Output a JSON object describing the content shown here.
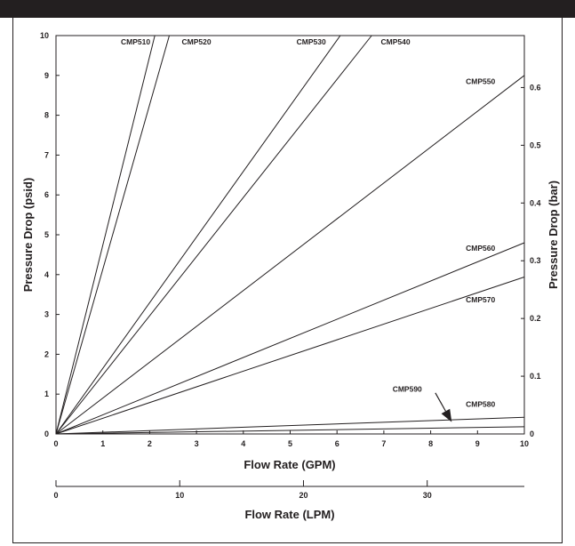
{
  "chart_data": {
    "type": "line",
    "xlabel": "Flow Rate (GPM)",
    "ylabel": "Pressure Drop (psid)",
    "y2label": "Pressure Drop (bar)",
    "x2label": "Flow Rate (LPM)",
    "xlim": [
      0,
      10
    ],
    "ylim": [
      0,
      10
    ],
    "y2lim": [
      0,
      0.69
    ],
    "x2lim": [
      0,
      37.85
    ],
    "x_ticks": [
      "0",
      "1",
      "2",
      "3",
      "4",
      "5",
      "6",
      "7",
      "8",
      "9",
      "10"
    ],
    "y_ticks": [
      "0",
      "1",
      "2",
      "3",
      "4",
      "5",
      "6",
      "7",
      "8",
      "9",
      "10"
    ],
    "y2_ticks": [
      {
        "value": 0,
        "label": "0"
      },
      {
        "value": 0.1,
        "label": "0.1"
      },
      {
        "value": 0.2,
        "label": "0.2"
      },
      {
        "value": 0.3,
        "label": "0.3"
      },
      {
        "value": 0.4,
        "label": "0.4"
      },
      {
        "value": 0.5,
        "label": "0.5"
      },
      {
        "value": 0.6,
        "label": "0.6"
      }
    ],
    "x2_ticks": [
      {
        "value": 0,
        "label": "0"
      },
      {
        "value": 10,
        "label": "10"
      },
      {
        "value": 20,
        "label": "20"
      },
      {
        "value": 30,
        "label": "30"
      }
    ],
    "series": [
      {
        "name": "CMP510",
        "x": [
          0,
          2.11
        ],
        "y": [
          0,
          10
        ]
      },
      {
        "name": "CMP520",
        "x": [
          0,
          2.42
        ],
        "y": [
          0,
          10
        ]
      },
      {
        "name": "CMP530",
        "x": [
          0,
          6.07
        ],
        "y": [
          0,
          10
        ]
      },
      {
        "name": "CMP540",
        "x": [
          0,
          6.74
        ],
        "y": [
          0,
          10
        ]
      },
      {
        "name": "CMP550",
        "x": [
          0,
          10
        ],
        "y": [
          0,
          9.0
        ]
      },
      {
        "name": "CMP560",
        "x": [
          0,
          10
        ],
        "y": [
          0,
          4.8
        ]
      },
      {
        "name": "CMP570",
        "x": [
          0,
          10
        ],
        "y": [
          0,
          3.94
        ]
      },
      {
        "name": "CMP580",
        "x": [
          0,
          10
        ],
        "y": [
          0,
          0.42
        ]
      },
      {
        "name": "CMP590",
        "x": [
          0,
          10
        ],
        "y": [
          0,
          0.18
        ]
      }
    ],
    "annotations": [
      {
        "text": "CMP510",
        "x": 1.7,
        "y": 9.78,
        "anchor": "middle"
      },
      {
        "text": "CMP520",
        "x": 3.0,
        "y": 9.78,
        "anchor": "middle"
      },
      {
        "text": "CMP530",
        "x": 5.45,
        "y": 9.78,
        "anchor": "middle"
      },
      {
        "text": "CMP540",
        "x": 7.25,
        "y": 9.78,
        "anchor": "middle"
      },
      {
        "text": "CMP550",
        "x": 8.75,
        "y": 8.78,
        "anchor": "start"
      },
      {
        "text": "CMP560",
        "x": 8.75,
        "y": 4.6,
        "anchor": "start"
      },
      {
        "text": "CMP570",
        "x": 8.75,
        "y": 3.3,
        "anchor": "start"
      },
      {
        "text": "CMP580",
        "x": 8.75,
        "y": 0.68,
        "anchor": "start"
      },
      {
        "text": "CMP590",
        "x": 7.5,
        "y": 1.06,
        "anchor": "middle"
      }
    ],
    "arrow": {
      "from": [
        8.1,
        1.03
      ],
      "to": [
        8.45,
        0.3
      ]
    },
    "grid": false
  }
}
